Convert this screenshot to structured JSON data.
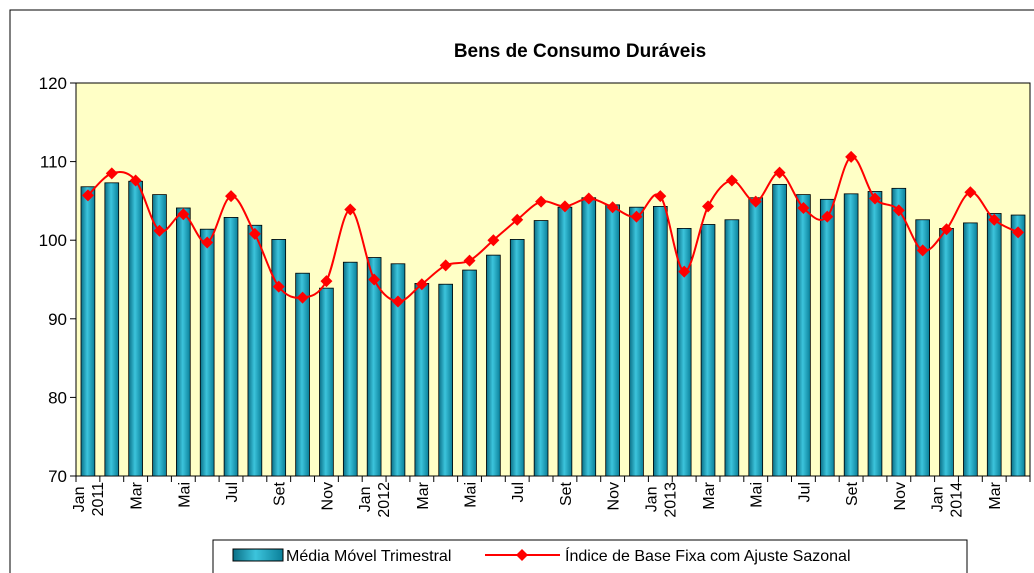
{
  "chart_data": {
    "type": "bar_line",
    "title": "Bens de Consumo Duráveis",
    "categories": [
      "Jan 2011",
      null,
      "Mar",
      null,
      "Mai",
      null,
      "Jul",
      null,
      "Set",
      null,
      "Nov",
      null,
      "Jan 2012",
      null,
      "Mar",
      null,
      "Mai",
      null,
      "Jul",
      null,
      "Set",
      null,
      "Nov",
      null,
      "Jan 2013",
      null,
      "Mar",
      null,
      "Mai",
      null,
      "Jul",
      null,
      "Set",
      null,
      "Nov",
      null,
      "Jan 2014",
      null,
      "Mar",
      null
    ],
    "series": [
      {
        "name": "Média Móvel Trimestral",
        "type": "bar",
        "color": "#0fa3bf",
        "values": [
          106.8,
          107.3,
          107.5,
          105.8,
          104.1,
          101.4,
          102.9,
          101.9,
          100.1,
          95.8,
          93.9,
          97.2,
          97.8,
          97.0,
          94.5,
          94.4,
          96.2,
          98.1,
          100.1,
          102.5,
          104.2,
          105.4,
          104.5,
          104.2,
          104.3,
          101.5,
          102.0,
          102.6,
          105.4,
          107.1,
          105.8,
          105.2,
          105.9,
          106.2,
          106.6,
          102.6,
          101.5,
          102.2,
          103.4,
          103.2
        ]
      },
      {
        "name": "Índice de Base Fixa com Ajuste Sazonal",
        "type": "line",
        "color": "#ff0000",
        "values": [
          105.7,
          108.5,
          107.6,
          101.2,
          103.3,
          99.7,
          105.6,
          100.8,
          94.1,
          92.7,
          94.8,
          103.9,
          95.0,
          92.2,
          94.4,
          96.8,
          97.4,
          100.0,
          102.6,
          104.9,
          104.3,
          105.3,
          104.2,
          103.0,
          105.6,
          96.0,
          104.3,
          107.6,
          104.9,
          108.6,
          104.1,
          103.0,
          110.6,
          105.3,
          103.8,
          98.7,
          101.4,
          106.1,
          102.6,
          101.0
        ]
      }
    ],
    "ylim": [
      70,
      120
    ],
    "yticks": [
      70,
      80,
      90,
      100,
      110,
      120
    ],
    "grid": false,
    "plot_background": "#ffffc6",
    "legend": "bottom"
  }
}
